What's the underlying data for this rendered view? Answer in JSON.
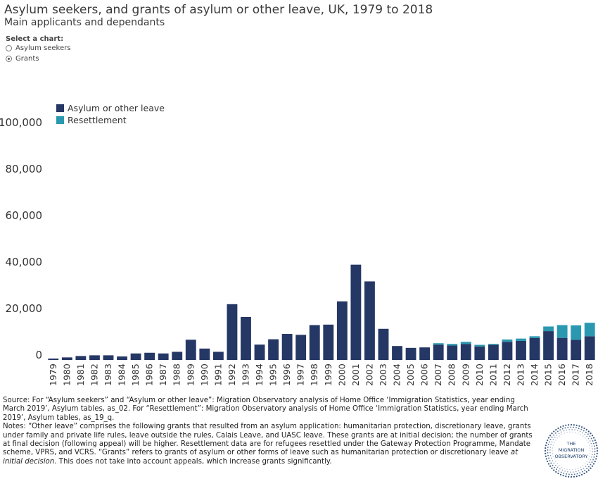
{
  "header": {
    "title": "Asylum seekers, and grants of asylum or other leave, UK, 1979 to 2018",
    "subtitle": "Main applicants and dependants"
  },
  "selector": {
    "label": "Select a chart:",
    "options": [
      {
        "label": "Asylum seekers",
        "checked": false
      },
      {
        "label": "Grants",
        "checked": true
      }
    ]
  },
  "chart_data": {
    "type": "bar",
    "stacked": true,
    "categories": [
      "1979",
      "1980",
      "1981",
      "1982",
      "1983",
      "1984",
      "1985",
      "1986",
      "1987",
      "1988",
      "1989",
      "1990",
      "1991",
      "1992",
      "1993",
      "1994",
      "1995",
      "1996",
      "1997",
      "1998",
      "1999",
      "2000",
      "2001",
      "2002",
      "2003",
      "2004",
      "2005",
      "2006",
      "2007",
      "2008",
      "2009",
      "2010",
      "2011",
      "2012",
      "2013",
      "2014",
      "2015",
      "2016",
      "2017",
      "2018"
    ],
    "series": [
      {
        "name": "Asylum or other leave",
        "color": "#253764",
        "values": [
          600,
          1100,
          1700,
          2000,
          2000,
          1500,
          2800,
          3100,
          2800,
          3500,
          8700,
          4900,
          3500,
          24000,
          18500,
          6600,
          8900,
          11200,
          10800,
          15000,
          15200,
          25200,
          41000,
          33800,
          13400,
          6000,
          5200,
          5400,
          6600,
          6200,
          6900,
          5800,
          6500,
          7800,
          8200,
          9400,
          12400,
          9500,
          8700,
          10200
        ]
      },
      {
        "name": "Resettlement",
        "color": "#2a98b0",
        "values": [
          0,
          0,
          0,
          0,
          0,
          0,
          0,
          0,
          0,
          0,
          0,
          0,
          0,
          0,
          0,
          0,
          0,
          0,
          0,
          0,
          0,
          0,
          0,
          0,
          0,
          0,
          0,
          0,
          600,
          700,
          900,
          700,
          400,
          1000,
          1000,
          800,
          2000,
          5500,
          6200,
          5800
        ]
      }
    ],
    "yticks": [
      0,
      20000,
      40000,
      60000,
      80000,
      100000
    ],
    "ytick_labels": [
      "0",
      "20,000",
      "40,000",
      "60,000",
      "80,000",
      "100,000"
    ],
    "ylim": [
      0,
      110000
    ],
    "legend_position": "top-left",
    "grid": false
  },
  "notes": {
    "source": "Source: For “Asylum seekers” and “Asylum or other leave”: Migration Observatory analysis of Home Office ‘Immigration Statistics, year ending March 2019’, Asylum tables, as_02. For “Resettlement”: Migration Observatory analysis of Home Office ‘Immigration Statistics, year ending March 2019’, Asylum tables, as_19_q.",
    "notes_main": "Notes: “Other leave” comprises the following grants that resulted from an asylum application: humanitarian protection, discretionary leave, grants under family and private life rules, leave outside the rules, Calais Leave, and UASC leave. These grants are at initial decision; the number of grants at final decision (following appeal) will be higher. Resettlement data are for refugees resettled under the Gateway Protection Programme, Mandate scheme, VPRS, and VCRS. “Grants” refers to grants of asylum or other forms of leave such as humanitarian protection or discretionary leave ",
    "notes_italic": "at initial decision",
    "notes_end": ". This does not take into account appeals, which increase grants significantly."
  },
  "logo": {
    "line1": "THE",
    "line2": "MIGRATION",
    "line3": "OBSERVATORY",
    "color": "#1d3f6e"
  }
}
